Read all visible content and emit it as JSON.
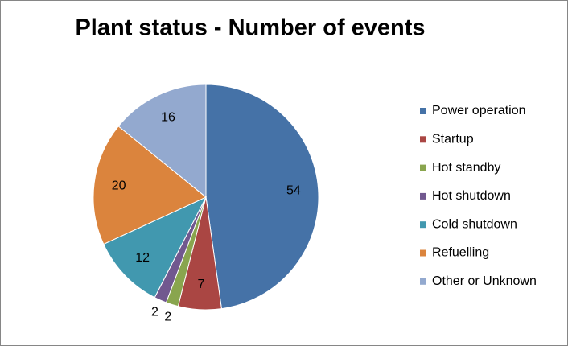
{
  "chart_data": {
    "type": "pie",
    "title": "Plant status - Number of events",
    "categories": [
      "Power operation",
      "Startup",
      "Hot standby",
      "Hot shutdown",
      "Cold shutdown",
      "Refuelling",
      "Other or Unknown"
    ],
    "values": [
      54,
      7,
      2,
      2,
      12,
      20,
      16
    ],
    "colors": [
      "#4572A7",
      "#AA4643",
      "#89A54E",
      "#71588F",
      "#4198AF",
      "#DB843D",
      "#93A9CF"
    ],
    "legend": "right"
  }
}
